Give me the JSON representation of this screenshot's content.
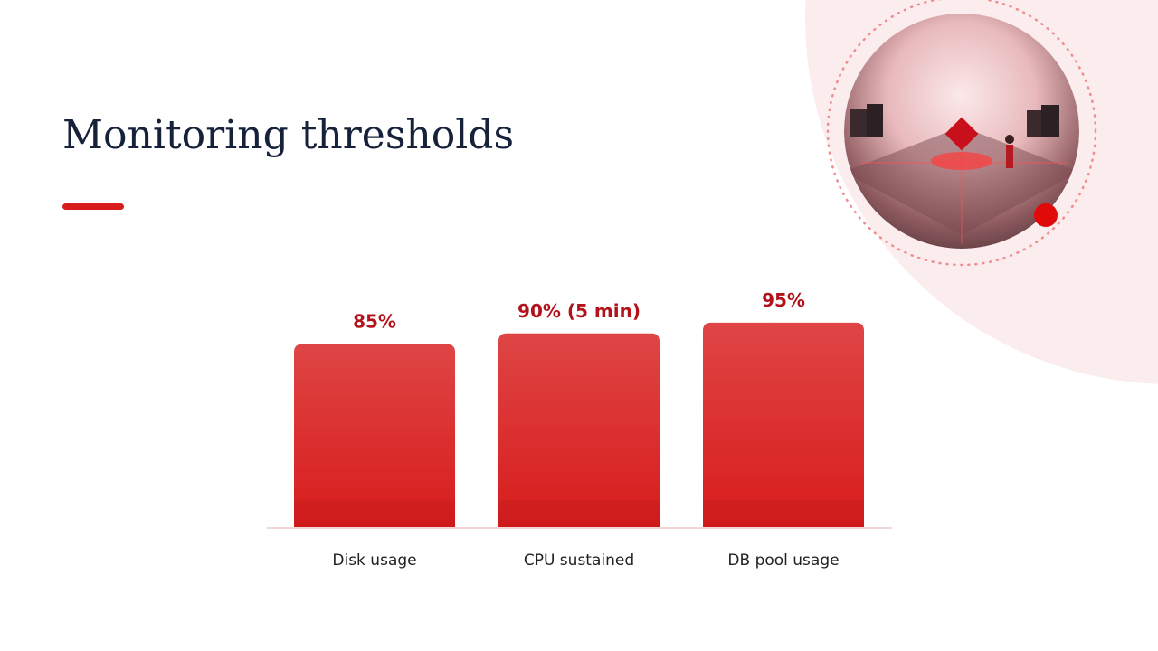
{
  "chart_data": {
    "type": "bar",
    "title": "Monitoring thresholds",
    "categories": [
      "Disk usage",
      "CPU sustained",
      "DB pool usage"
    ],
    "values": [
      85,
      90,
      95
    ],
    "value_labels": [
      "85%",
      "90% (5 min)",
      "95%"
    ],
    "color": "#d81c1c",
    "ylim": [
      0,
      100
    ]
  }
}
